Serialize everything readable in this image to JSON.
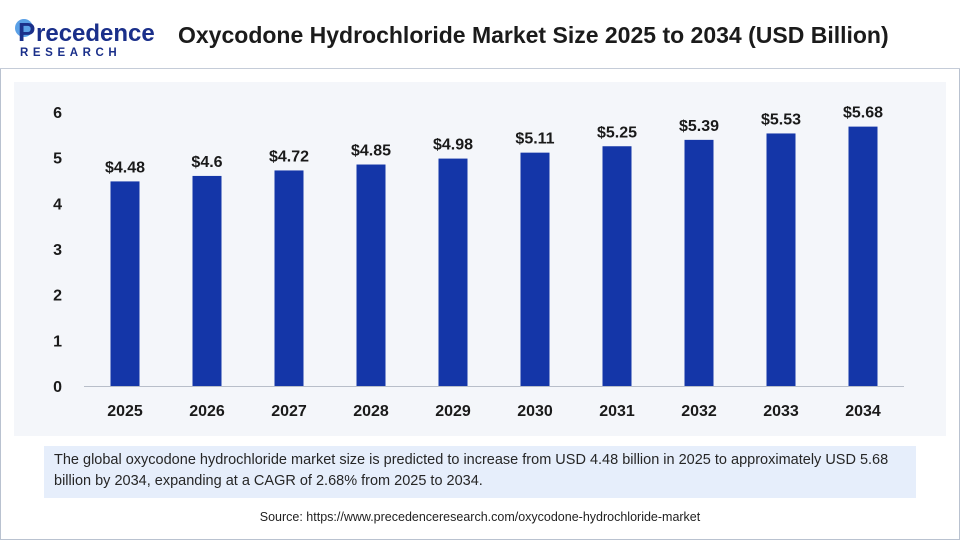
{
  "brand": {
    "name_main": "recedence",
    "name_initial": "P",
    "name_sub": "RESEARCH",
    "color_primary": "#1a2f8a",
    "color_accent": "#5aa0e6"
  },
  "header": {
    "title": "Oxycodone Hydrochloride Market Size 2025 to 2034 (USD Billion)"
  },
  "chart_data": {
    "type": "bar",
    "title": "Oxycodone Hydrochloride Market Size 2025 to 2034 (USD Billion)",
    "xlabel": "",
    "ylabel": "",
    "categories": [
      "2025",
      "2026",
      "2027",
      "2028",
      "2029",
      "2030",
      "2031",
      "2032",
      "2033",
      "2034"
    ],
    "values": [
      4.48,
      4.6,
      4.72,
      4.85,
      4.98,
      5.11,
      5.25,
      5.39,
      5.53,
      5.68
    ],
    "data_labels": [
      "$4.48",
      "$4.6",
      "$4.72",
      "$4.85",
      "$4.98",
      "$5.11",
      "$5.25",
      "$5.39",
      "$5.53",
      "$5.68"
    ],
    "y_ticks": [
      "0",
      "1",
      "2",
      "3",
      "4",
      "5",
      "6"
    ],
    "ylim": [
      0,
      6
    ],
    "grid": false,
    "legend": "none",
    "bar_color": "#1436a8"
  },
  "summary": {
    "text": "The global oxycodone hydrochloride market size is predicted to increase from USD 4.48 billion in 2025 to approximately USD 5.68 billion by 2034, expanding at a CAGR of 2.68% from 2025 to 2034."
  },
  "source": {
    "text": "Source: https://www.precedenceresearch.com/oxycodone-hydrochloride-market"
  }
}
